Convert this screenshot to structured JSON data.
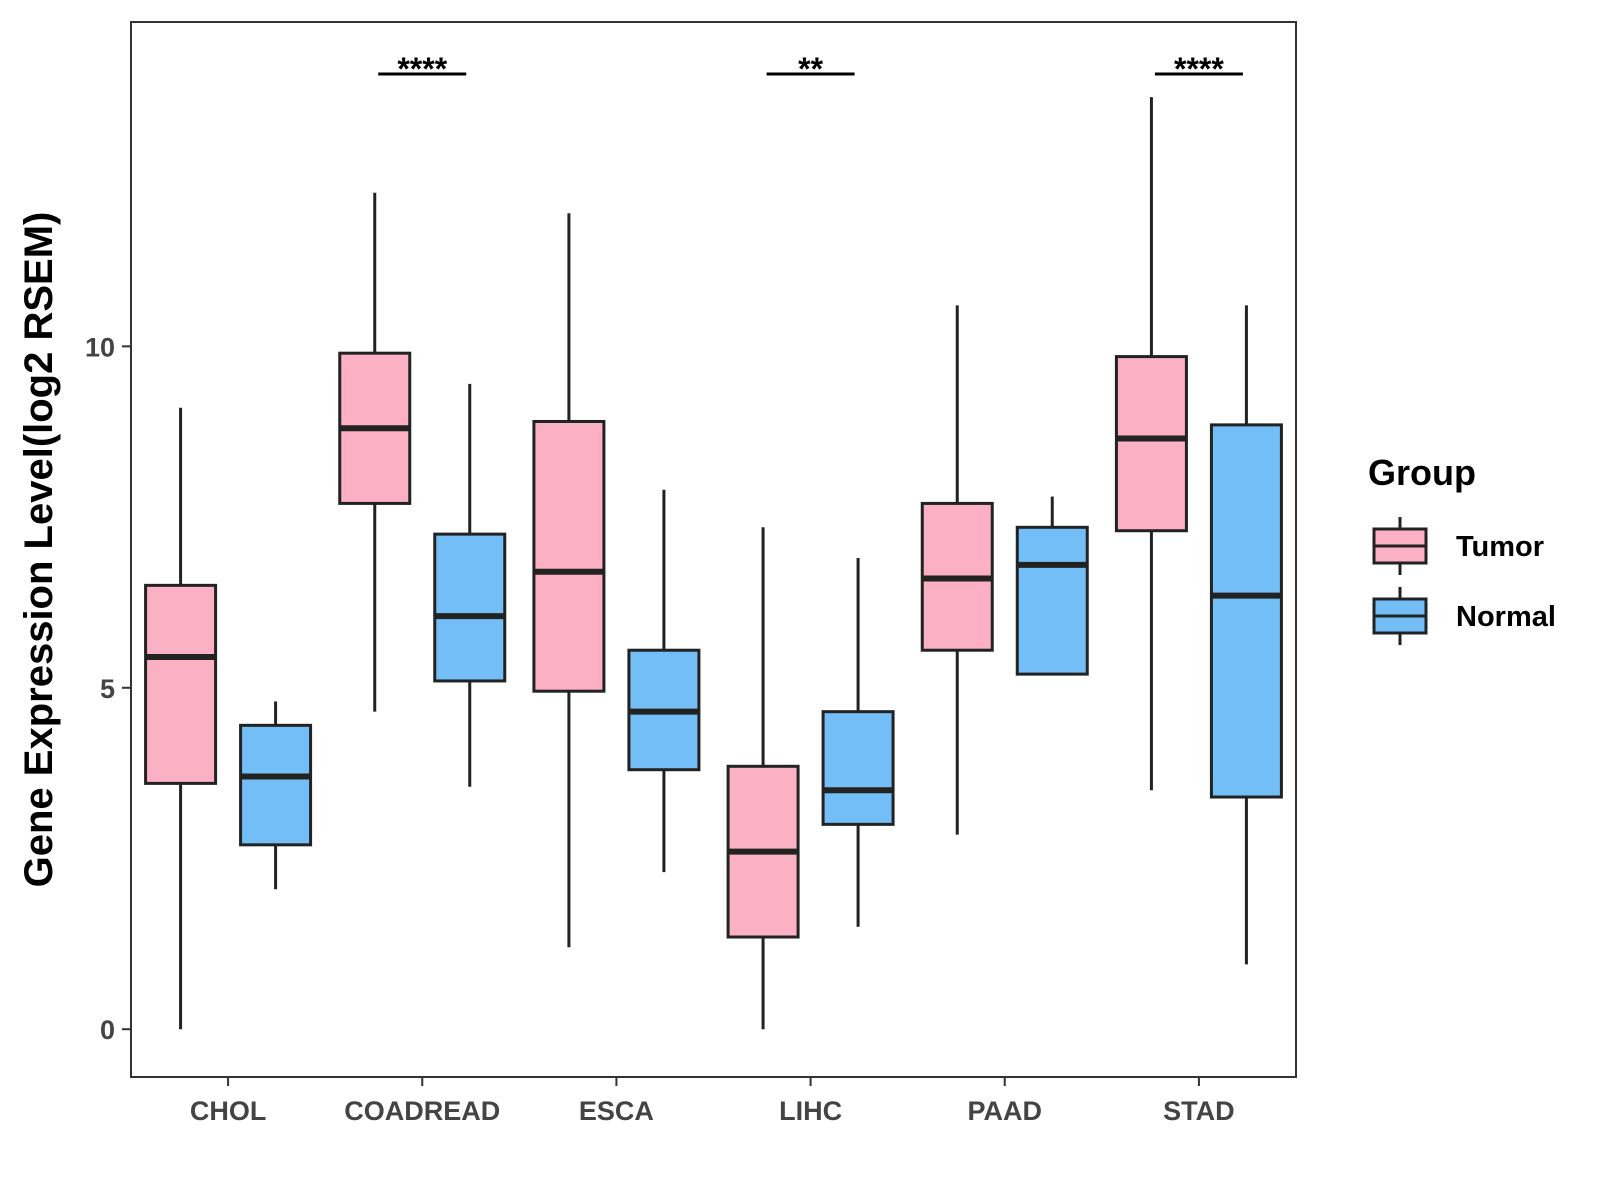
{
  "chart_data": {
    "type": "boxplot",
    "title": "",
    "xlabel": "",
    "ylabel": "Gene Expression Level(log2 RSEM)",
    "ylim": [
      -0.7,
      14.75
    ],
    "yticks": [
      0,
      5,
      10
    ],
    "ytick_labels": [
      "0",
      "5",
      "10"
    ],
    "grid": false,
    "categories": [
      "CHOL",
      "COADREAD",
      "ESCA",
      "LIHC",
      "PAAD",
      "STAD"
    ],
    "legend": {
      "title": "Group",
      "position": "right",
      "entries": [
        {
          "name": "Tumor",
          "color": "#FBB0C3"
        },
        {
          "name": "Normal",
          "color": "#74BEF7"
        }
      ]
    },
    "series": [
      {
        "name": "Tumor",
        "color": "#FBB0C3",
        "boxes": [
          {
            "min": 0.0,
            "q1": 3.6,
            "median": 5.45,
            "q3": 6.5,
            "max": 9.1
          },
          {
            "min": 4.65,
            "q1": 7.7,
            "median": 8.8,
            "q3": 9.9,
            "max": 12.25
          },
          {
            "min": 1.2,
            "q1": 4.95,
            "median": 6.7,
            "q3": 8.9,
            "max": 11.95
          },
          {
            "min": 0.0,
            "q1": 1.35,
            "median": 2.6,
            "q3": 3.85,
            "max": 7.35
          },
          {
            "min": 2.85,
            "q1": 5.55,
            "median": 6.6,
            "q3": 7.7,
            "max": 10.6
          },
          {
            "min": 3.5,
            "q1": 7.3,
            "median": 8.65,
            "q3": 9.85,
            "max": 13.65
          }
        ]
      },
      {
        "name": "Normal",
        "color": "#74BEF7",
        "boxes": [
          {
            "min": 2.05,
            "q1": 2.7,
            "median": 3.7,
            "q3": 4.45,
            "max": 4.8
          },
          {
            "min": 3.55,
            "q1": 5.1,
            "median": 6.05,
            "q3": 7.25,
            "max": 9.45
          },
          {
            "min": 2.3,
            "q1": 3.8,
            "median": 4.65,
            "q3": 5.55,
            "max": 7.9
          },
          {
            "min": 1.5,
            "q1": 3.0,
            "median": 3.5,
            "q3": 4.65,
            "max": 6.9
          },
          {
            "min": 5.2,
            "q1": 5.2,
            "median": 6.8,
            "q3": 7.35,
            "max": 7.8
          },
          {
            "min": 0.95,
            "q1": 3.4,
            "median": 6.35,
            "q3": 8.85,
            "max": 10.6
          }
        ]
      }
    ],
    "annotations": [
      {
        "category": "COADREAD",
        "label": "****"
      },
      {
        "category": "LIHC",
        "label": "**"
      },
      {
        "category": "STAD",
        "label": "****"
      }
    ]
  }
}
